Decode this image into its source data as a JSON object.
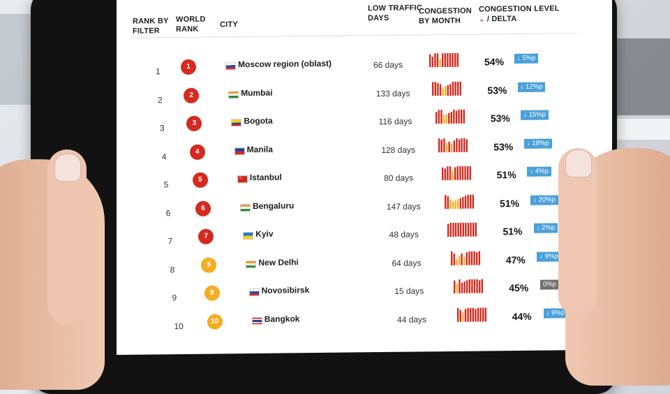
{
  "header": {
    "rank_by_filter": "RANK BY FILTER",
    "world_rank": "WORLD RANK",
    "city": "CITY",
    "low_traffic_days": "LOW TRAFFIC DAYS",
    "congestion_by_month": "CONGESTION BY MONTH",
    "congestion_level": "CONGESTION LEVEL",
    "delta_label": "/ DELTA"
  },
  "colors": {
    "rank_red": "#d42a1f",
    "rank_amber": "#f4ae22",
    "delta_blue": "#4aa0d9",
    "delta_neutral": "#707070",
    "bar_red": "#d42a1f",
    "bar_yellow": "#f4ae22"
  },
  "rows": [
    {
      "rank": "1",
      "world_rank": "1",
      "badge": "red",
      "flag": "russia",
      "city": "Moscow region (oblast)",
      "low_days": "66 days",
      "congestion": "54%",
      "delta": "↓ 5%p",
      "delta_type": "down",
      "months": [
        0.9,
        0.7,
        1,
        1,
        0.5,
        1,
        1,
        1,
        1,
        1,
        1,
        1
      ]
    },
    {
      "rank": "2",
      "world_rank": "2",
      "badge": "red",
      "flag": "india",
      "city": "Mumbai",
      "low_days": "133 days",
      "congestion": "53%",
      "delta": "↓ 12%p",
      "delta_type": "down",
      "months": [
        1,
        1,
        0.9,
        0.8,
        0.4,
        0.6,
        0.7,
        0.8,
        1,
        1,
        1,
        1
      ]
    },
    {
      "rank": "3",
      "world_rank": "3",
      "badge": "red",
      "flag": "colombia",
      "city": "Bogota",
      "low_days": "116 days",
      "congestion": "53%",
      "delta": "↓ 15%p",
      "delta_type": "down",
      "months": [
        0.8,
        1,
        1,
        0.5,
        0.6,
        0.7,
        0.8,
        1,
        0.9,
        1,
        1,
        1
      ]
    },
    {
      "rank": "4",
      "world_rank": "4",
      "badge": "red",
      "flag": "philippines",
      "city": "Manila",
      "low_days": "128 days",
      "congestion": "53%",
      "delta": "↓ 18%p",
      "delta_type": "down",
      "months": [
        1,
        0.9,
        1,
        0.6,
        0.7,
        0.5,
        0.8,
        1,
        0.9,
        1,
        1,
        0.9
      ]
    },
    {
      "rank": "5",
      "world_rank": "5",
      "badge": "red",
      "flag": "turkey",
      "city": "Istanbul",
      "low_days": "80 days",
      "congestion": "51%",
      "delta": "↓ 4%p",
      "delta_type": "down",
      "months": [
        0.9,
        0.8,
        1,
        1,
        0.6,
        0.9,
        1,
        1,
        1,
        1,
        1,
        1
      ]
    },
    {
      "rank": "6",
      "world_rank": "6",
      "badge": "red",
      "flag": "india",
      "city": "Bengaluru",
      "low_days": "147 days",
      "congestion": "51%",
      "delta": "↓ 20%p",
      "delta_type": "down",
      "months": [
        1,
        0.9,
        0.6,
        0.4,
        0.5,
        0.6,
        0.7,
        0.8,
        0.9,
        1,
        1,
        1
      ]
    },
    {
      "rank": "7",
      "world_rank": "7",
      "badge": "red",
      "flag": "ukraine",
      "city": "Kyiv",
      "low_days": "48 days",
      "congestion": "51%",
      "delta": "↓ 2%p",
      "delta_type": "down",
      "months": [
        0.9,
        1,
        1,
        1,
        1,
        1,
        1,
        1,
        1,
        1,
        1,
        1
      ]
    },
    {
      "rank": "8",
      "world_rank": "8",
      "badge": "amber",
      "flag": "india",
      "city": "New Delhi",
      "low_days": "64 days",
      "congestion": "47%",
      "delta": "↓ 9%p",
      "delta_type": "down",
      "months": [
        1,
        0.8,
        0.3,
        0.6,
        0.8,
        0.5,
        0.9,
        1,
        1,
        1,
        0.9,
        1
      ]
    },
    {
      "rank": "9",
      "world_rank": "9",
      "badge": "amber",
      "flag": "russia",
      "city": "Novosibirsk",
      "low_days": "15 days",
      "congestion": "45%",
      "delta": "0%p",
      "delta_type": "neutral",
      "months": [
        0.9,
        0.6,
        1,
        0.7,
        0.8,
        0.9,
        1,
        1,
        1,
        1,
        0.9,
        1
      ]
    },
    {
      "rank": "10",
      "world_rank": "10",
      "badge": "amber",
      "flag": "thailand",
      "city": "Bangkok",
      "low_days": "44 days",
      "congestion": "44%",
      "delta": "↓ 9%p",
      "delta_type": "down",
      "months": [
        1,
        0.8,
        0.6,
        0.9,
        1,
        1,
        1,
        0.9,
        1,
        1,
        1,
        1
      ]
    }
  ]
}
